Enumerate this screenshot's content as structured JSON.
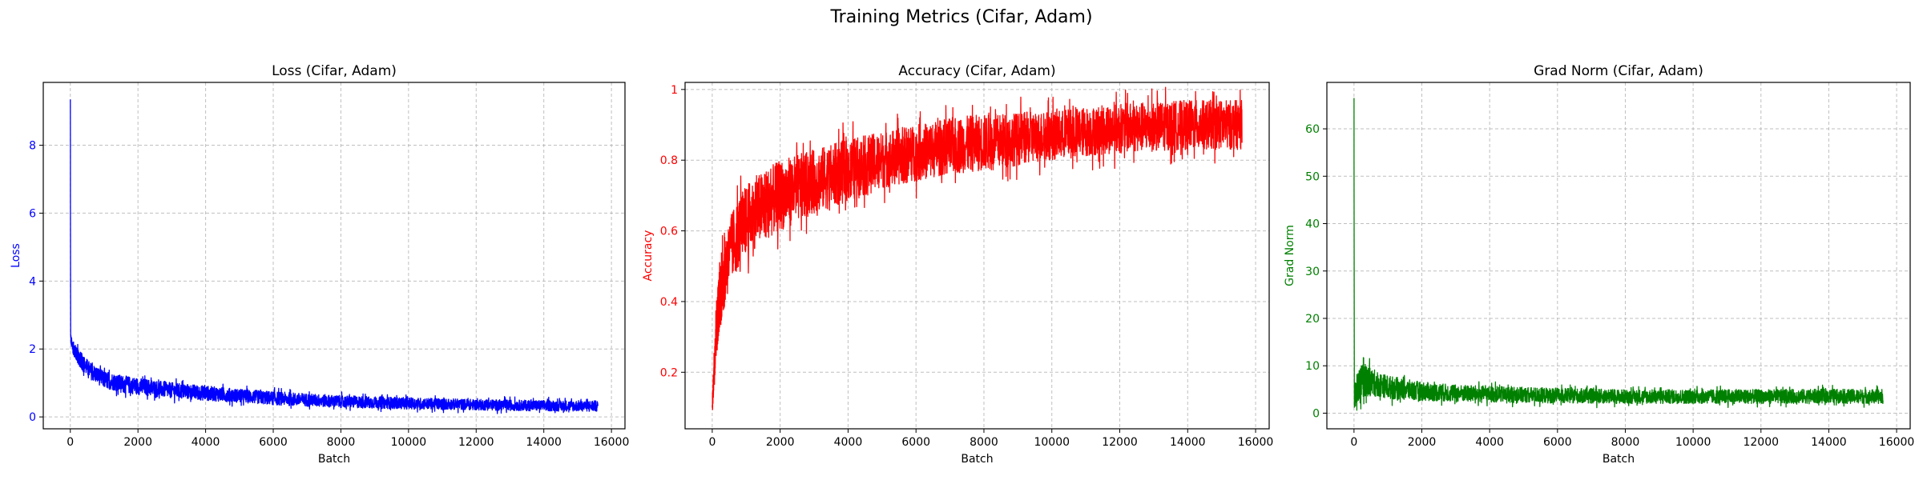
{
  "figure": {
    "title": "Training Metrics (Cifar, Adam)"
  },
  "chart_data": [
    {
      "type": "line",
      "title": "Loss (Cifar, Adam)",
      "xlabel": "Batch",
      "ylabel": "Loss",
      "color": "#0000ff",
      "xlim": [
        -800,
        16400
      ],
      "ylim": [
        -0.35,
        9.85
      ],
      "xticks": [
        0,
        2000,
        4000,
        6000,
        8000,
        10000,
        12000,
        14000,
        16000
      ],
      "yticks": [
        0,
        2,
        4,
        6,
        8
      ],
      "grid": true,
      "series": [
        {
          "x": [
            0,
            10,
            30,
            60,
            100,
            200,
            400,
            600,
            800,
            1000,
            1500,
            2000,
            3000,
            4000,
            5000,
            6000,
            8000,
            10000,
            12000,
            14000,
            15600
          ],
          "y": [
            9.35,
            2.35,
            2.2,
            2.1,
            2.0,
            1.82,
            1.55,
            1.35,
            1.22,
            1.1,
            0.98,
            0.9,
            0.78,
            0.7,
            0.62,
            0.55,
            0.45,
            0.4,
            0.36,
            0.33,
            0.32
          ],
          "spread": [
            0,
            0.15,
            0.15,
            0.18,
            0.2,
            0.22,
            0.25,
            0.25,
            0.25,
            0.25,
            0.25,
            0.25,
            0.23,
            0.22,
            0.2,
            0.2,
            0.18,
            0.17,
            0.16,
            0.16,
            0.16
          ]
        }
      ]
    },
    {
      "type": "line",
      "title": "Accuracy (Cifar, Adam)",
      "xlabel": "Batch",
      "ylabel": "Accuracy",
      "color": "#ff0000",
      "xlim": [
        -800,
        16400
      ],
      "ylim": [
        0.04,
        1.02
      ],
      "xticks": [
        0,
        2000,
        4000,
        6000,
        8000,
        10000,
        12000,
        14000,
        16000
      ],
      "yticks": [
        0.2,
        0.4,
        0.6,
        0.8,
        1.0
      ],
      "grid": true,
      "series": [
        {
          "x": [
            0,
            50,
            100,
            200,
            400,
            600,
            800,
            1000,
            1500,
            2000,
            3000,
            4000,
            5000,
            6000,
            7000,
            8000,
            10000,
            12000,
            14000,
            15600
          ],
          "y": [
            0.1,
            0.2,
            0.3,
            0.4,
            0.5,
            0.56,
            0.6,
            0.63,
            0.67,
            0.7,
            0.74,
            0.77,
            0.8,
            0.82,
            0.84,
            0.85,
            0.87,
            0.89,
            0.9,
            0.9
          ],
          "spread": [
            0.02,
            0.06,
            0.08,
            0.09,
            0.1,
            0.1,
            0.1,
            0.1,
            0.1,
            0.1,
            0.09,
            0.09,
            0.08,
            0.08,
            0.08,
            0.08,
            0.07,
            0.07,
            0.07,
            0.07
          ]
        }
      ]
    },
    {
      "type": "line",
      "title": "Grad Norm (Cifar, Adam)",
      "xlabel": "Batch",
      "ylabel": "Grad Norm",
      "color": "#008000",
      "xlim": [
        -800,
        16400
      ],
      "ylim": [
        -3.3,
        69.8
      ],
      "xticks": [
        0,
        2000,
        4000,
        6000,
        8000,
        10000,
        12000,
        14000,
        16000
      ],
      "yticks": [
        0,
        10,
        20,
        30,
        40,
        50,
        60
      ],
      "grid": true,
      "series": [
        {
          "x": [
            0,
            10,
            30,
            100,
            200,
            300,
            500,
            800,
            1000,
            1500,
            2000,
            3000,
            4000,
            6000,
            8000,
            10000,
            12000,
            14000,
            15600
          ],
          "y": [
            66.5,
            2.0,
            3.0,
            5.0,
            6.5,
            7.0,
            6.5,
            6.0,
            5.5,
            5.0,
            4.6,
            4.2,
            4.0,
            3.7,
            3.5,
            3.5,
            3.5,
            3.6,
            3.5
          ],
          "spread": [
            0,
            1.0,
            2.0,
            3.0,
            3.5,
            3.5,
            3.0,
            2.5,
            2.5,
            2.2,
            2.0,
            1.8,
            1.7,
            1.6,
            1.5,
            1.5,
            1.5,
            1.5,
            1.5
          ]
        }
      ]
    }
  ]
}
